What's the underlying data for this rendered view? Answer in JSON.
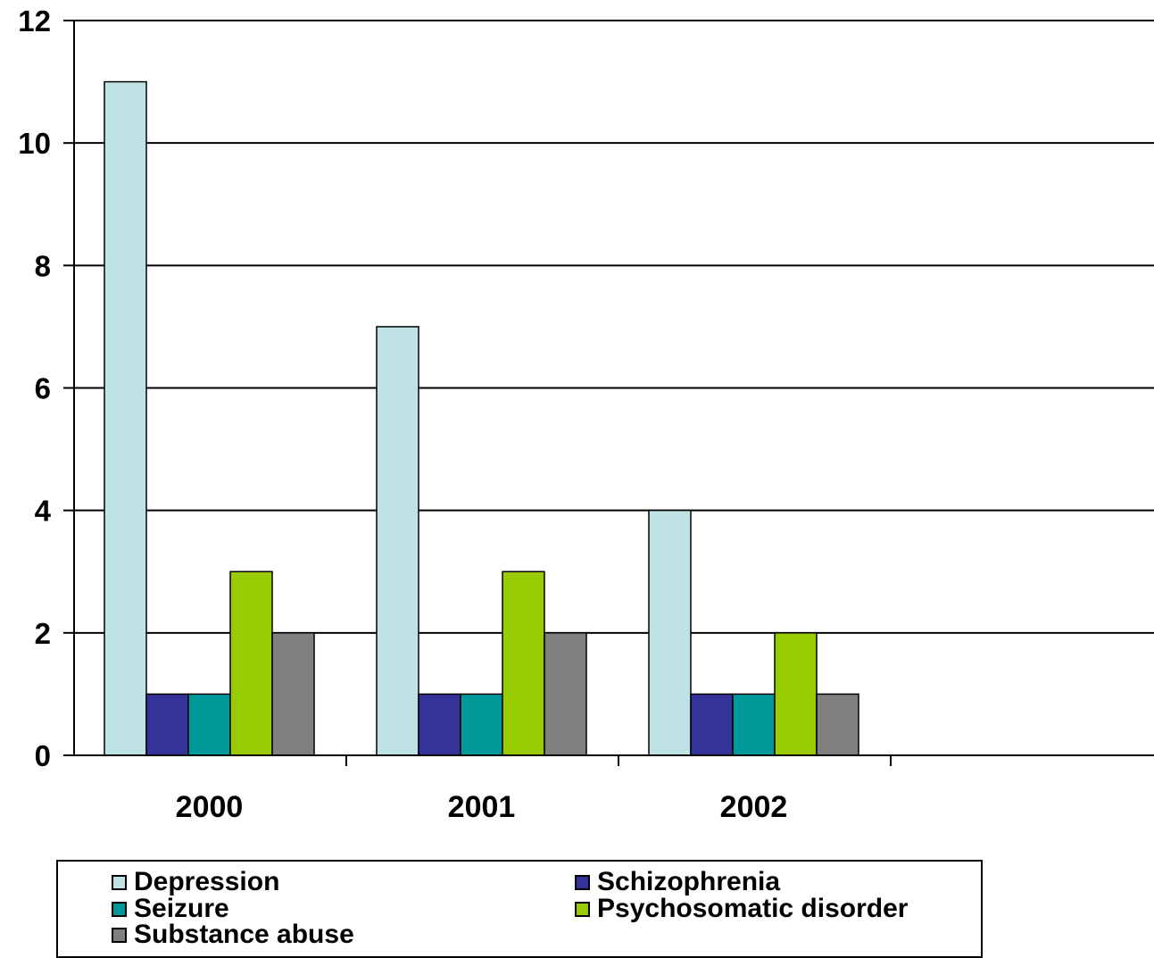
{
  "chart_data": {
    "type": "bar",
    "title": "",
    "xlabel": "",
    "ylabel": "",
    "categories": [
      "2000",
      "2001",
      "2002"
    ],
    "ylim": [
      0,
      12
    ],
    "yticks": [
      0,
      2,
      4,
      6,
      8,
      10,
      12
    ],
    "grid": true,
    "legend_position": "bottom",
    "series": [
      {
        "name": "Depression",
        "values": [
          11,
          7,
          4
        ],
        "color": "#bfe3e5"
      },
      {
        "name": "Schizophrenia",
        "values": [
          1,
          1,
          1
        ],
        "color": "#333399"
      },
      {
        "name": "Seizure",
        "values": [
          1,
          1,
          1
        ],
        "color": "#009999"
      },
      {
        "name": "Psychosomatic disorder",
        "values": [
          3,
          3,
          2
        ],
        "color": "#99cc00"
      },
      {
        "name": "Substance abuse",
        "values": [
          2,
          2,
          1
        ],
        "color": "#808080"
      }
    ]
  }
}
